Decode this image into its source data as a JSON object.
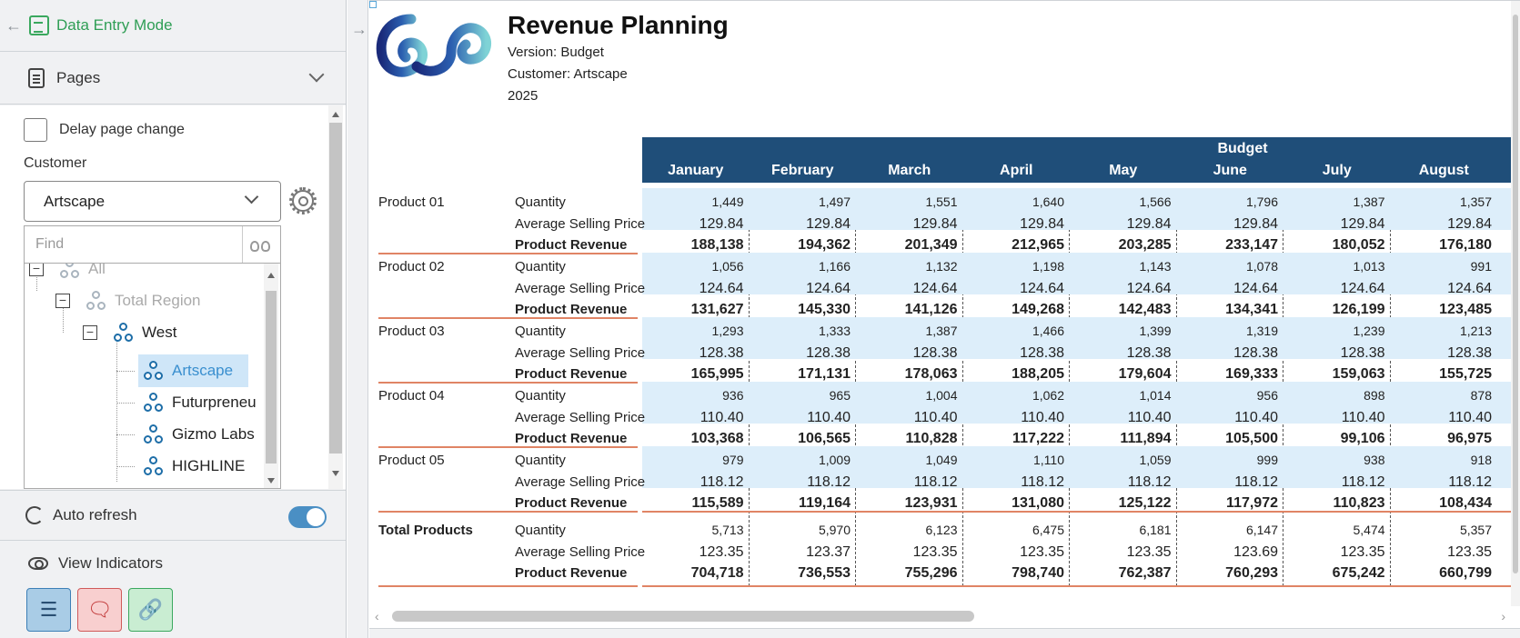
{
  "left_panel": {
    "header_title": "Data Entry Mode",
    "pages_label": "Pages",
    "delay_label": "Delay page change",
    "customer_label": "Customer",
    "customer_value": "Artscape",
    "find_placeholder": "Find",
    "tree": {
      "all": "All",
      "total_region": "Total Region",
      "west": "West",
      "children": [
        "Artscape",
        "Futurpreneu",
        "Gizmo Labs",
        "HIGHLINE"
      ]
    },
    "auto_refresh_label": "Auto refresh",
    "view_indicators_label": "View Indicators"
  },
  "report": {
    "title": "Revenue Planning",
    "version": "Version: Budget",
    "customer": "Customer: Artscape",
    "year": "2025",
    "header_group": "Budget",
    "months": [
      "January",
      "February",
      "March",
      "April",
      "May",
      "June",
      "July",
      "August"
    ],
    "metric_labels": [
      "Quantity",
      "Average Selling Price",
      "Product Revenue"
    ],
    "products": [
      {
        "name": "Product 01",
        "qty": [
          "1,449",
          "1,497",
          "1,551",
          "1,640",
          "1,566",
          "1,796",
          "1,387",
          "1,357"
        ],
        "asp": [
          "129.84",
          "129.84",
          "129.84",
          "129.84",
          "129.84",
          "129.84",
          "129.84",
          "129.84"
        ],
        "rev": [
          "188,138",
          "194,362",
          "201,349",
          "212,965",
          "203,285",
          "233,147",
          "180,052",
          "176,180"
        ]
      },
      {
        "name": "Product 02",
        "qty": [
          "1,056",
          "1,166",
          "1,132",
          "1,198",
          "1,143",
          "1,078",
          "1,013",
          "991"
        ],
        "asp": [
          "124.64",
          "124.64",
          "124.64",
          "124.64",
          "124.64",
          "124.64",
          "124.64",
          "124.64"
        ],
        "rev": [
          "131,627",
          "145,330",
          "141,126",
          "149,268",
          "142,483",
          "134,341",
          "126,199",
          "123,485"
        ]
      },
      {
        "name": "Product 03",
        "qty": [
          "1,293",
          "1,333",
          "1,387",
          "1,466",
          "1,399",
          "1,319",
          "1,239",
          "1,213"
        ],
        "asp": [
          "128.38",
          "128.38",
          "128.38",
          "128.38",
          "128.38",
          "128.38",
          "128.38",
          "128.38"
        ],
        "rev": [
          "165,995",
          "171,131",
          "178,063",
          "188,205",
          "179,604",
          "169,333",
          "159,063",
          "155,725"
        ]
      },
      {
        "name": "Product 04",
        "qty": [
          "936",
          "965",
          "1,004",
          "1,062",
          "1,014",
          "956",
          "898",
          "878"
        ],
        "asp": [
          "110.40",
          "110.40",
          "110.40",
          "110.40",
          "110.40",
          "110.40",
          "110.40",
          "110.40"
        ],
        "rev": [
          "103,368",
          "106,565",
          "110,828",
          "117,222",
          "111,894",
          "105,500",
          "99,106",
          "96,975"
        ]
      },
      {
        "name": "Product 05",
        "qty": [
          "979",
          "1,009",
          "1,049",
          "1,110",
          "1,059",
          "999",
          "938",
          "918"
        ],
        "asp": [
          "118.12",
          "118.12",
          "118.12",
          "118.12",
          "118.12",
          "118.12",
          "118.12",
          "118.12"
        ],
        "rev": [
          "115,589",
          "119,164",
          "123,931",
          "131,080",
          "125,122",
          "117,972",
          "110,823",
          "108,434"
        ]
      }
    ],
    "total": {
      "name": "Total Products",
      "qty": [
        "5,713",
        "5,970",
        "6,123",
        "6,475",
        "6,181",
        "6,147",
        "5,474",
        "5,357"
      ],
      "asp": [
        "123.35",
        "123.37",
        "123.35",
        "123.35",
        "123.35",
        "123.69",
        "123.35",
        "123.35"
      ],
      "rev": [
        "704,718",
        "736,553",
        "755,296",
        "798,740",
        "762,387",
        "760,293",
        "675,242",
        "660,799"
      ]
    }
  },
  "colors": {
    "accent_green": "#2f9e55",
    "header_blue": "#1f4e79",
    "qty_bg": "#ddeefa",
    "row_divider": "#e08465"
  }
}
